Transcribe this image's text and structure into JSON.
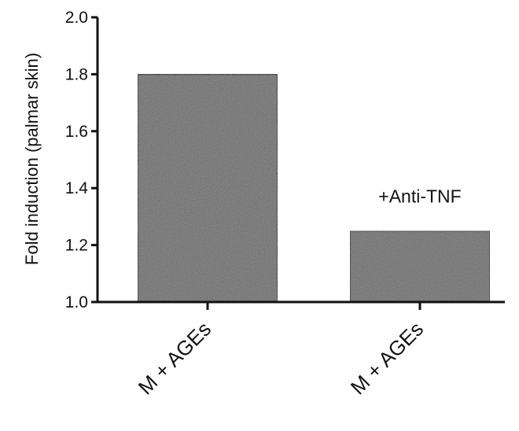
{
  "chart_data": {
    "type": "bar",
    "categories": [
      "M + AGEs",
      "M + AGEs"
    ],
    "values": [
      1.8,
      1.25
    ],
    "ylabel": "Fold induction (palmar skin)",
    "xlabel": "",
    "ylim": [
      1.0,
      2.0
    ],
    "yticks": [
      "1.0",
      "1.2",
      "1.4",
      "1.6",
      "1.8",
      "2.0"
    ],
    "annotations": [
      {
        "text": "+Anti-TNF",
        "category_index": 1
      }
    ],
    "bar_color": "#6b6b6b",
    "grid": false,
    "legend": "none"
  }
}
